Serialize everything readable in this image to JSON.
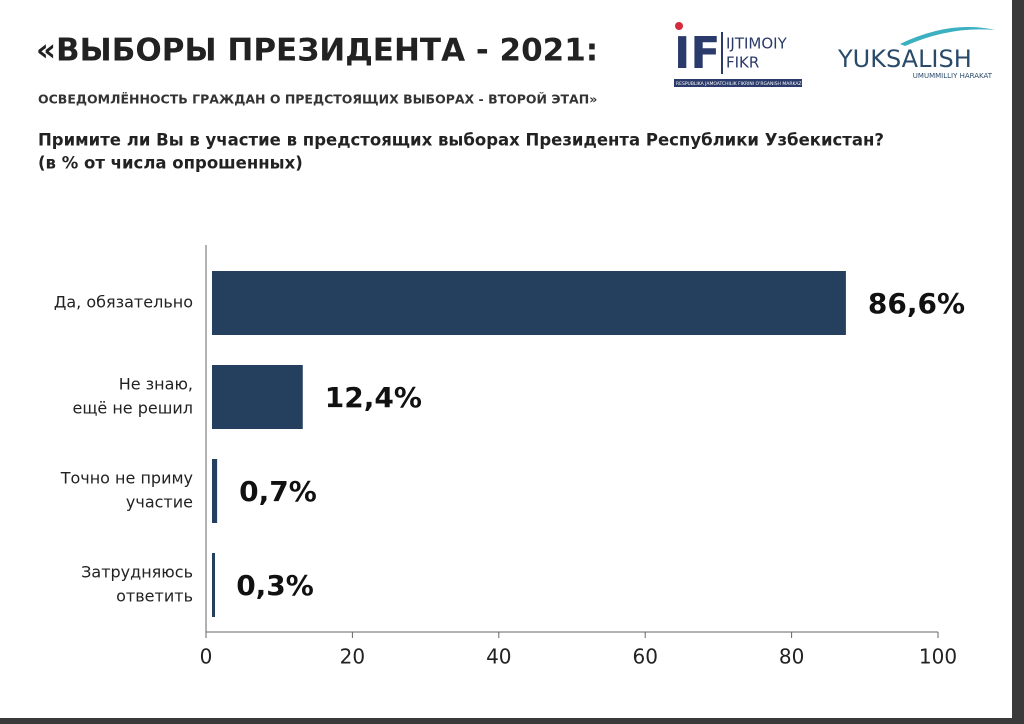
{
  "header": {
    "title": "«ВЫБОРЫ ПРЕЗИДЕНТА - 2021:",
    "subtitle": "ОСВЕДОМЛЁННОСТЬ ГРАЖДАН О ПРЕДСТОЯЩИХ ВЫБОРАХ - ВТОРОЙ ЭТАП»",
    "logos": {
      "if_mark": "IF",
      "if_line1": "IJTIMOIY",
      "if_line2": "FIKR",
      "if_caption": "RESPUBLIKA JAMOATCHILIK FIKRINI O'RGANISH MARKAZI",
      "yuksalish": "YUKSALISH",
      "yuksalish_caption": "UMUMMILLIY HARAKAT"
    }
  },
  "chart_data": {
    "type": "hbar",
    "question": [
      "Примите ли Вы в участие в предстоящих выборах Президента Республики Узбекистан?",
      "(в % от числа опрошенных)"
    ],
    "categories": [
      [
        "Да, обязательно"
      ],
      [
        "Не знаю,",
        "ещё не решил"
      ],
      [
        "Точно не приму",
        "участие"
      ],
      [
        "Затрудняюсь",
        "ответить"
      ]
    ],
    "values": [
      86.6,
      12.4,
      0.7,
      0.3
    ],
    "value_labels": [
      "86,6%",
      "12,4%",
      "0,7%",
      "0,3%"
    ],
    "color": "#253f5f",
    "xlim": [
      0,
      100
    ],
    "xticks": [
      0,
      20,
      40,
      60,
      80,
      100
    ]
  }
}
